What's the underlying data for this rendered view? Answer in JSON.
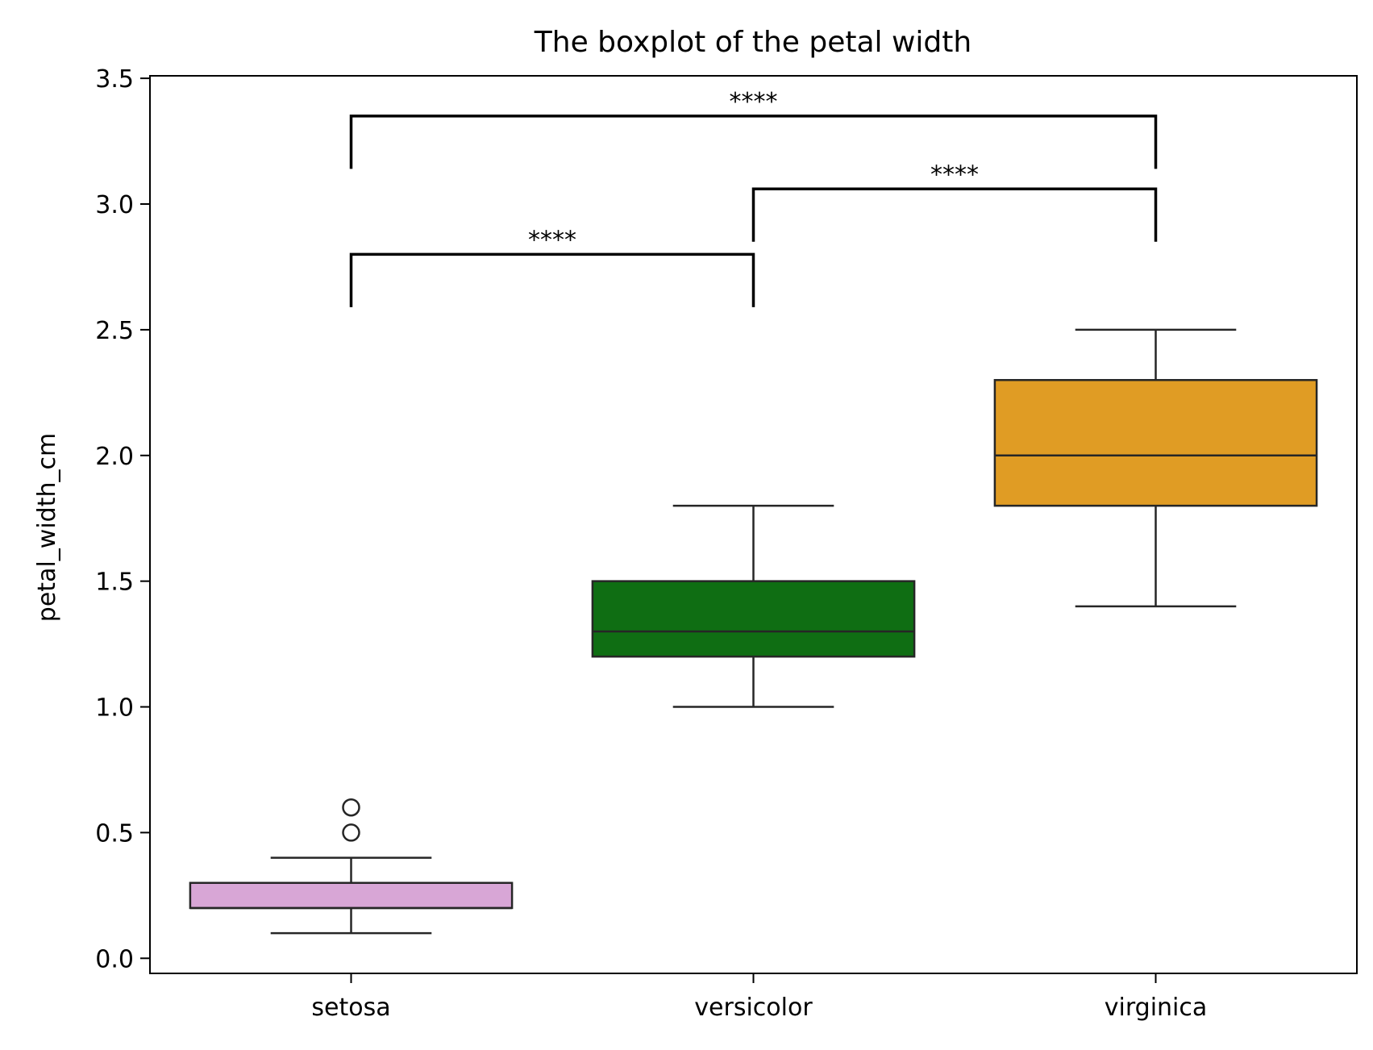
{
  "chart_data": {
    "type": "boxplot",
    "title": "The boxplot of the petal width",
    "xlabel": "",
    "ylabel": "petal_width_cm",
    "ylim": [
      -0.06,
      3.51
    ],
    "yticks": [
      0.0,
      0.5,
      1.0,
      1.5,
      2.0,
      2.5,
      3.0,
      3.5
    ],
    "ytick_labels": [
      "0.0",
      "0.5",
      "1.0",
      "1.5",
      "2.0",
      "2.5",
      "3.0",
      "3.5"
    ],
    "categories": [
      "setosa",
      "versicolor",
      "virginica"
    ],
    "boxes": [
      {
        "category": "setosa",
        "color": "#d8a6d6",
        "whisker_low": 0.1,
        "q1": 0.2,
        "median": 0.2,
        "q3": 0.3,
        "whisker_high": 0.4,
        "outliers": [
          0.5,
          0.6
        ]
      },
      {
        "category": "versicolor",
        "color": "#0f6e13",
        "whisker_low": 1.0,
        "q1": 1.2,
        "median": 1.3,
        "q3": 1.5,
        "whisker_high": 1.8,
        "outliers": []
      },
      {
        "category": "virginica",
        "color": "#e09c24",
        "whisker_low": 1.4,
        "q1": 1.8,
        "median": 2.0,
        "q3": 2.3,
        "whisker_high": 2.5,
        "outliers": []
      }
    ],
    "significance": [
      {
        "from": "setosa",
        "to": "versicolor",
        "y": 2.8,
        "label": "****"
      },
      {
        "from": "versicolor",
        "to": "virginica",
        "y": 3.06,
        "label": "****"
      },
      {
        "from": "setosa",
        "to": "virginica",
        "y": 3.35,
        "label": "****"
      }
    ],
    "grid": false,
    "legend": "none"
  }
}
